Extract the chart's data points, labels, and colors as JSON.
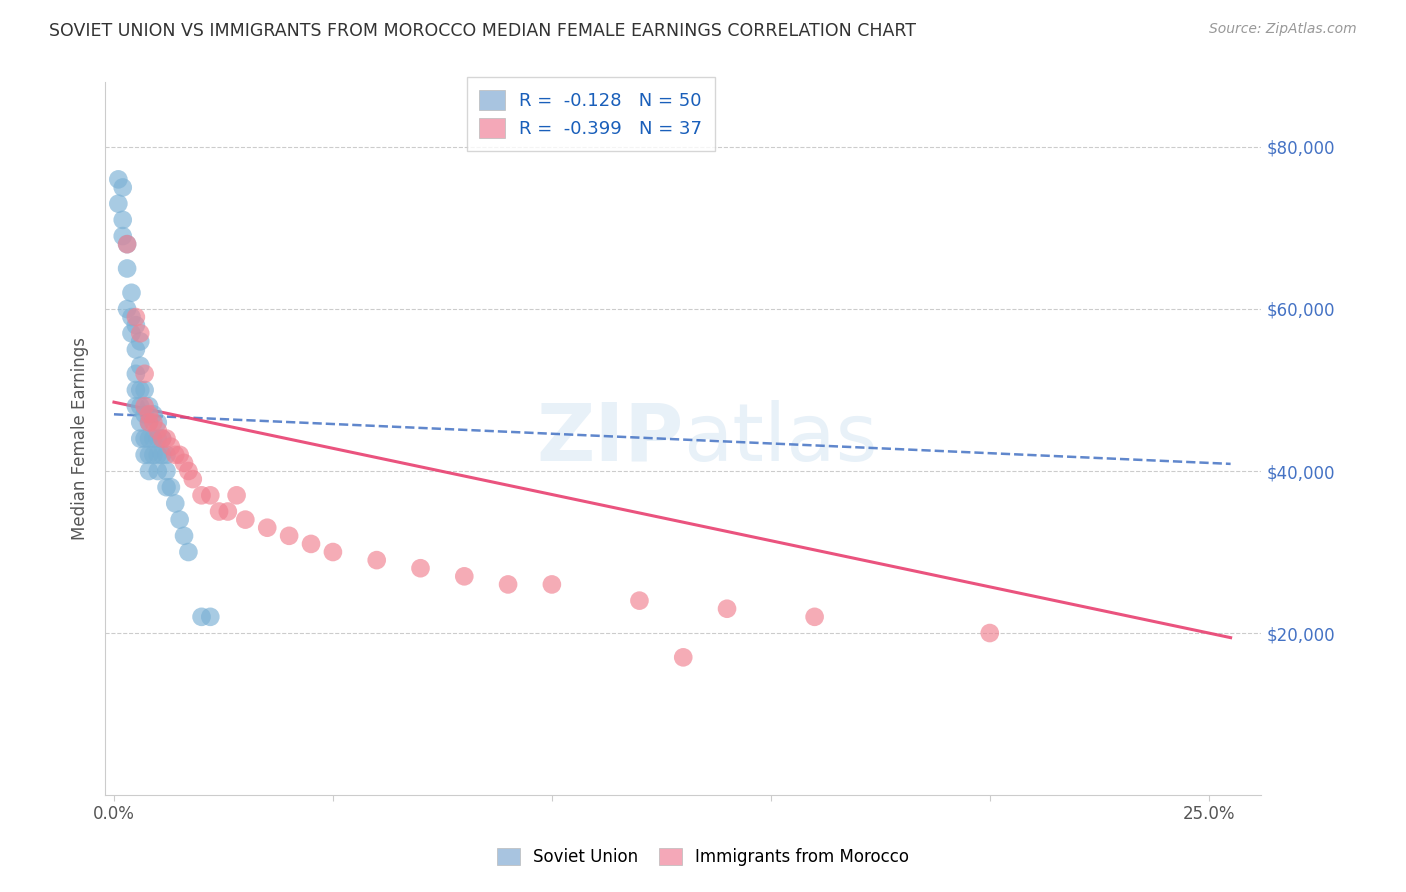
{
  "title": "SOVIET UNION VS IMMIGRANTS FROM MOROCCO MEDIAN FEMALE EARNINGS CORRELATION CHART",
  "source": "Source: ZipAtlas.com",
  "ylabel": "Median Female Earnings",
  "ylim": [
    0,
    88000
  ],
  "xlim": [
    -0.002,
    0.262
  ],
  "legend1_label": "R =  -0.128   N = 50",
  "legend2_label": "R =  -0.399   N = 37",
  "legend1_color": "#a8c4e0",
  "legend2_color": "#f4a8b8",
  "scatter1_color": "#7ab0d4",
  "scatter2_color": "#f08090",
  "line1_color": "#4472C4",
  "line2_color": "#E84070",
  "soviet_x": [
    0.001,
    0.001,
    0.002,
    0.002,
    0.002,
    0.003,
    0.003,
    0.003,
    0.004,
    0.004,
    0.004,
    0.005,
    0.005,
    0.005,
    0.005,
    0.005,
    0.006,
    0.006,
    0.006,
    0.006,
    0.006,
    0.006,
    0.007,
    0.007,
    0.007,
    0.007,
    0.008,
    0.008,
    0.008,
    0.008,
    0.008,
    0.009,
    0.009,
    0.009,
    0.01,
    0.01,
    0.01,
    0.01,
    0.011,
    0.011,
    0.012,
    0.012,
    0.012,
    0.013,
    0.014,
    0.015,
    0.016,
    0.017,
    0.02,
    0.022
  ],
  "soviet_y": [
    76000,
    73000,
    75000,
    71000,
    69000,
    68000,
    65000,
    60000,
    62000,
    59000,
    57000,
    58000,
    55000,
    52000,
    50000,
    48000,
    56000,
    53000,
    50000,
    48000,
    46000,
    44000,
    50000,
    47000,
    44000,
    42000,
    48000,
    46000,
    44000,
    42000,
    40000,
    47000,
    44000,
    42000,
    46000,
    44000,
    42000,
    40000,
    44000,
    42000,
    42000,
    40000,
    38000,
    38000,
    36000,
    34000,
    32000,
    30000,
    22000,
    22000
  ],
  "morocco_x": [
    0.003,
    0.005,
    0.006,
    0.007,
    0.007,
    0.008,
    0.008,
    0.009,
    0.01,
    0.011,
    0.012,
    0.013,
    0.014,
    0.015,
    0.016,
    0.017,
    0.018,
    0.02,
    0.022,
    0.024,
    0.026,
    0.028,
    0.03,
    0.035,
    0.04,
    0.045,
    0.05,
    0.06,
    0.07,
    0.08,
    0.09,
    0.1,
    0.12,
    0.14,
    0.16,
    0.2,
    0.13
  ],
  "morocco_y": [
    68000,
    59000,
    57000,
    52000,
    48000,
    47000,
    46000,
    46000,
    45000,
    44000,
    44000,
    43000,
    42000,
    42000,
    41000,
    40000,
    39000,
    37000,
    37000,
    35000,
    35000,
    37000,
    34000,
    33000,
    32000,
    31000,
    30000,
    29000,
    28000,
    27000,
    26000,
    26000,
    24000,
    23000,
    22000,
    20000,
    17000
  ],
  "sov_line_x": [
    0.0,
    0.25
  ],
  "sov_line_y": [
    47000,
    41000
  ],
  "mor_line_x": [
    0.0,
    0.25
  ],
  "mor_line_y": [
    48000,
    20000
  ]
}
